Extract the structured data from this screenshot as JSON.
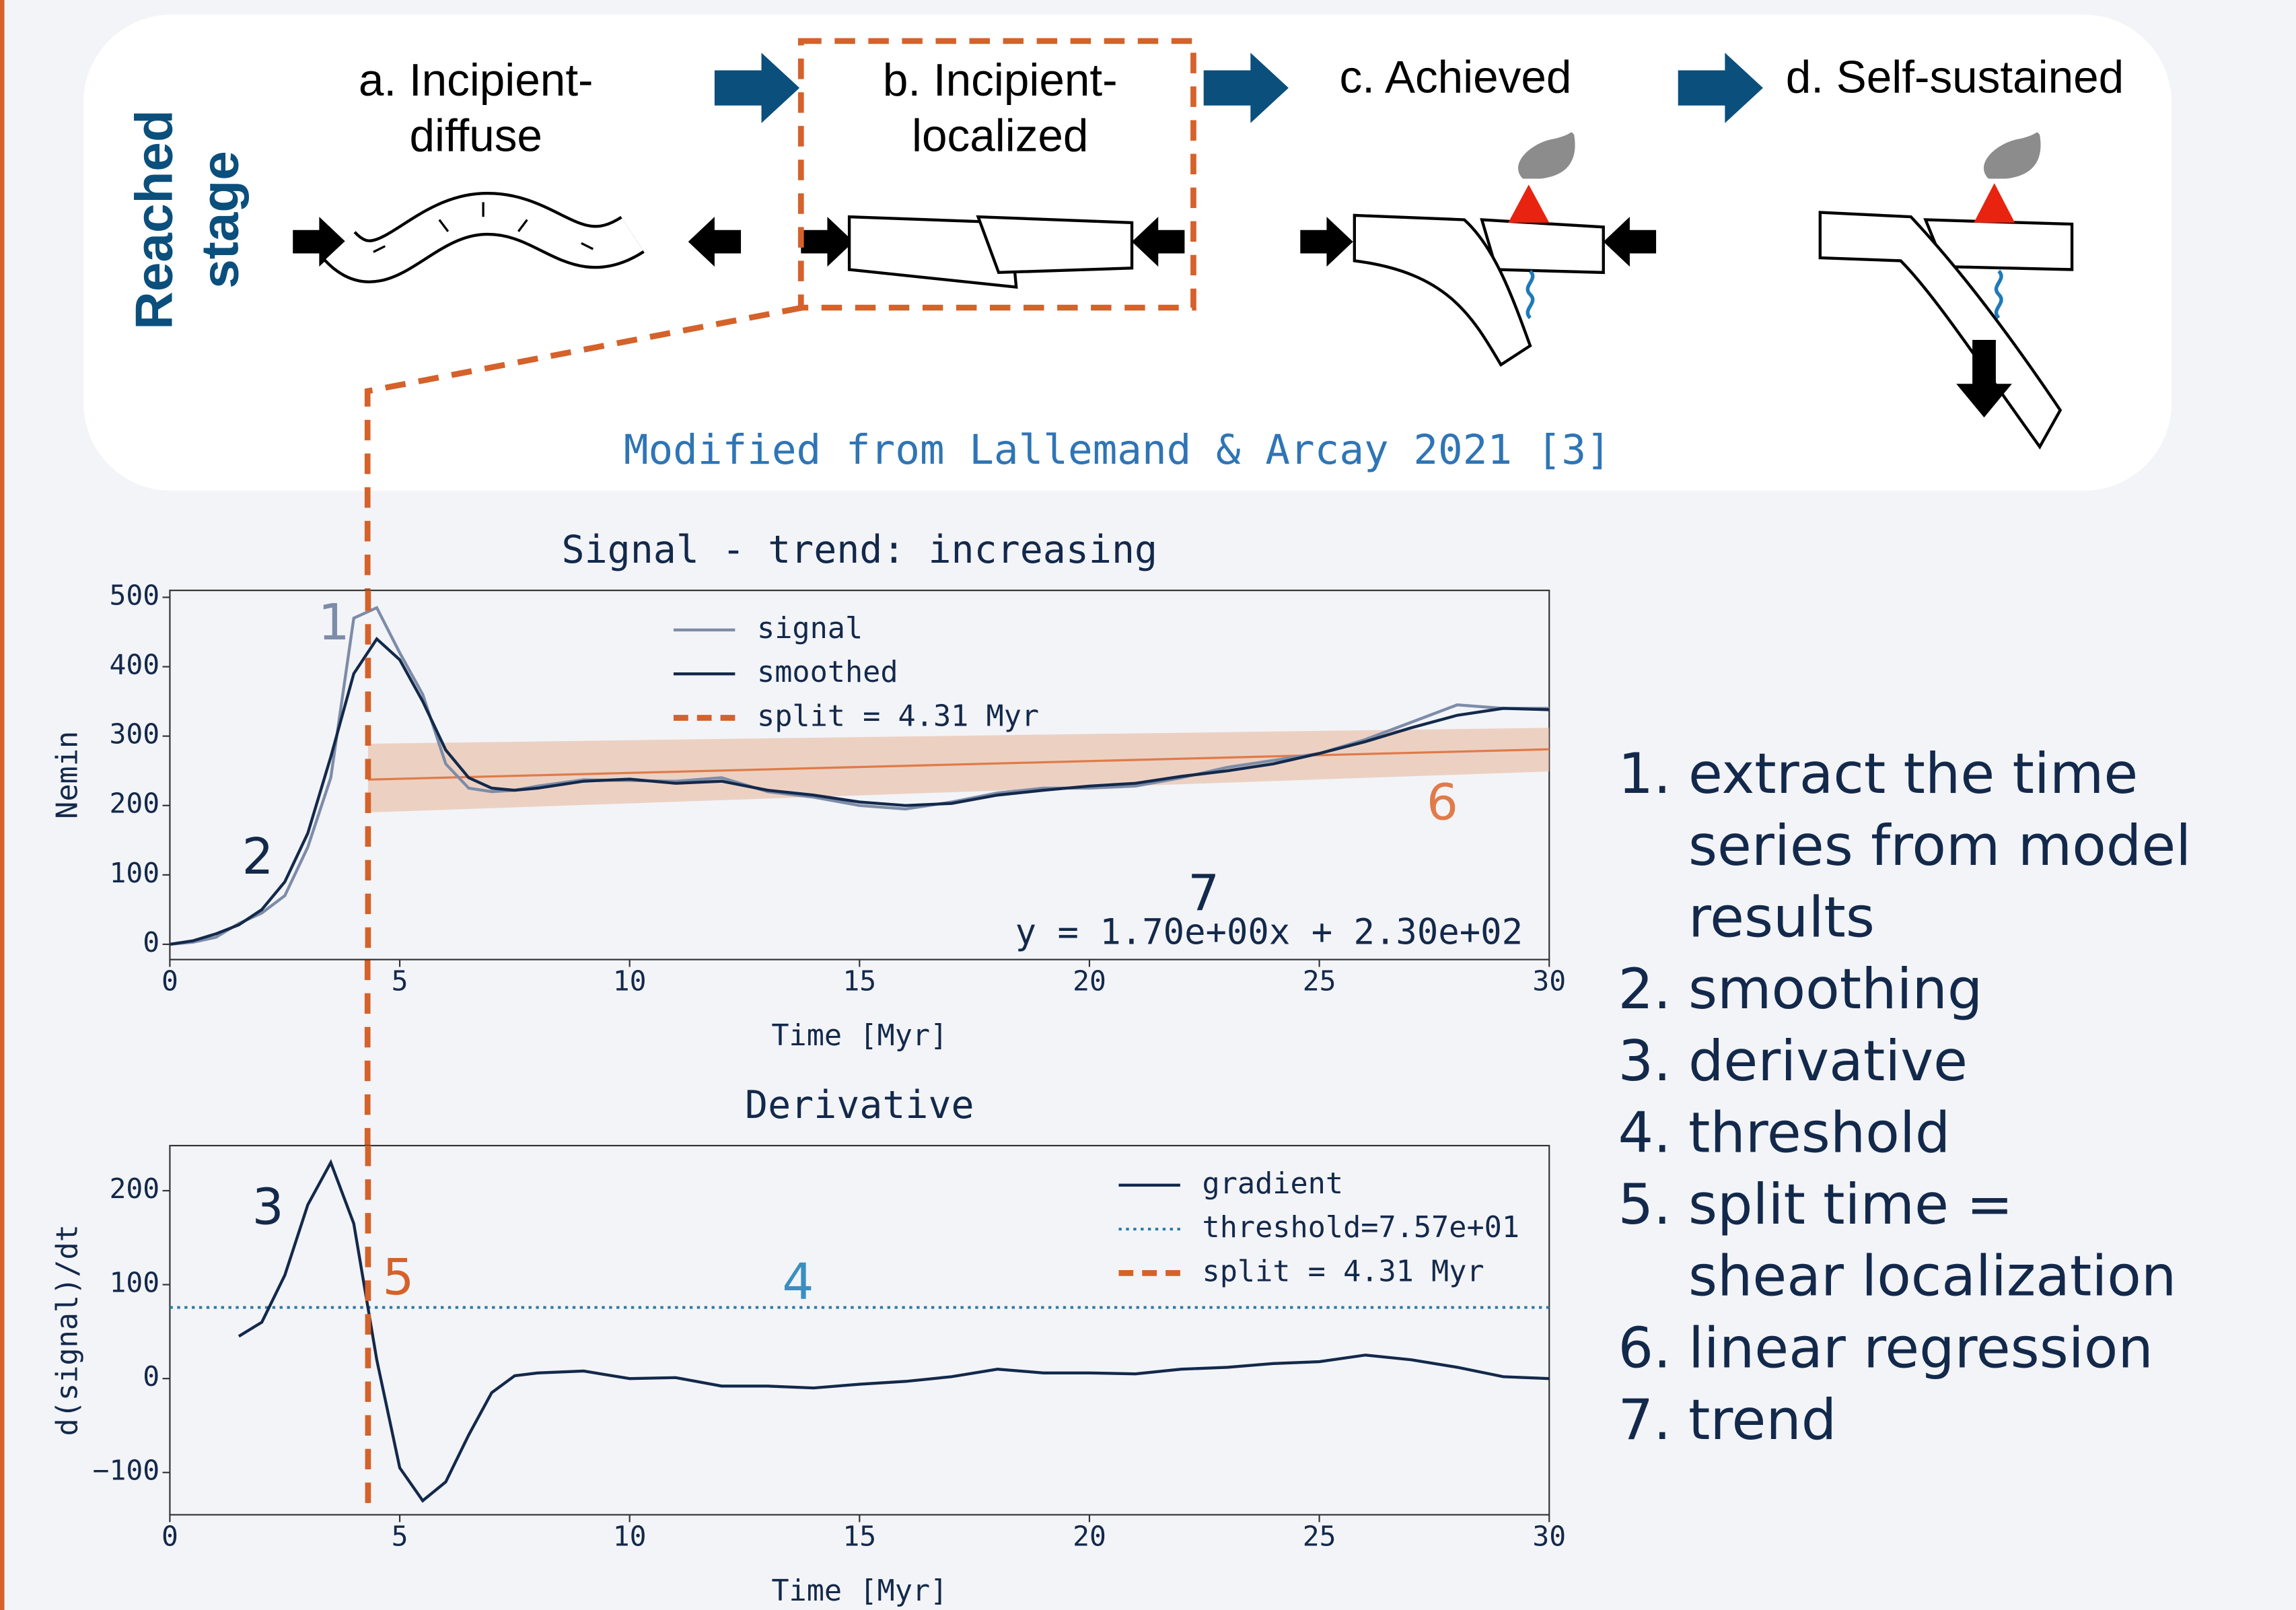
{
  "diagram": {
    "side_label": [
      "Reached",
      "stage"
    ],
    "stages": [
      {
        "label": [
          "a. Incipient-",
          "diffuse"
        ]
      },
      {
        "label": [
          "b. Incipient-",
          "localized"
        ]
      },
      {
        "label": [
          "c. Achieved"
        ]
      },
      {
        "label": [
          "d. Self-sustained"
        ]
      }
    ],
    "credit": "Modified from Lallemand & Arcay 2021 [3]"
  },
  "steps": [
    {
      "number": "1.",
      "text": [
        "extract the time",
        "series from model",
        "results"
      ]
    },
    {
      "number": "2.",
      "text": [
        "smoothing"
      ]
    },
    {
      "number": "3.",
      "text": [
        "derivative"
      ]
    },
    {
      "number": "4.",
      "text": [
        "threshold"
      ]
    },
    {
      "number": "5.",
      "text": [
        "split time =",
        "shear localization"
      ]
    },
    {
      "number": "6.",
      "text": [
        "linear regression"
      ]
    },
    {
      "number": "7.",
      "text": [
        "trend"
      ]
    }
  ],
  "chart_data": [
    {
      "type": "line",
      "title": "Signal - trend: increasing",
      "x_label": "Time [Myr]",
      "y_label": "Nemin",
      "x": [
        0,
        0.5,
        1,
        1.5,
        2,
        2.5,
        3,
        3.5,
        4,
        4.5,
        5,
        5.5,
        6,
        6.5,
        7,
        7.5,
        8,
        9,
        10,
        11,
        12,
        13,
        14,
        15,
        16,
        17,
        18,
        19,
        20,
        21,
        22,
        23,
        24,
        25,
        26,
        27,
        28,
        29,
        30
      ],
      "series": [
        {
          "name": "signal",
          "color": "#7d8ca8",
          "values": [
            0,
            3,
            10,
            30,
            45,
            70,
            140,
            240,
            470,
            485,
            420,
            360,
            260,
            225,
            220,
            222,
            228,
            237,
            236,
            235,
            240,
            220,
            212,
            200,
            195,
            205,
            218,
            225,
            225,
            228,
            240,
            255,
            265,
            275,
            295,
            320,
            345,
            340,
            340
          ]
        },
        {
          "name": "smoothed",
          "color": "#13294b",
          "values": [
            0,
            5,
            15,
            28,
            50,
            90,
            160,
            270,
            390,
            440,
            410,
            350,
            280,
            240,
            225,
            222,
            225,
            235,
            238,
            232,
            235,
            222,
            215,
            205,
            200,
            203,
            215,
            222,
            228,
            232,
            242,
            250,
            260,
            275,
            292,
            312,
            330,
            340,
            338
          ]
        }
      ],
      "regression": {
        "color": "#e07b4a",
        "band_color": "#e8b9a0",
        "x": [
          4.31,
          30
        ],
        "values": [
          237.3,
          281
        ],
        "lower": [
          190,
          249
        ],
        "upper": [
          289,
          312
        ]
      },
      "split": {
        "x": 4.31,
        "label": "split = 4.31 Myr",
        "color": "#d4622a"
      },
      "equation": "y = 1.70e+00x + 2.30e+02",
      "annotations": [
        {
          "text": "1",
          "color": "#7d8ca8"
        },
        {
          "text": "2",
          "color": "#13294b"
        },
        {
          "text": "6",
          "color": "#e07b4a"
        },
        {
          "text": "7",
          "color": "#13294b"
        }
      ],
      "legend": "upper center",
      "xlim": [
        0,
        30
      ],
      "ylim": [
        -22,
        510
      ],
      "xticks": [
        0,
        5,
        10,
        15,
        20,
        25,
        30
      ],
      "yticks": [
        0,
        100,
        200,
        300,
        400,
        500
      ]
    },
    {
      "type": "line",
      "title": "Derivative",
      "x_label": "Time [Myr]",
      "y_label": "d(signal)/dt",
      "x": [
        1.5,
        2,
        2.5,
        3,
        3.5,
        4,
        4.5,
        5,
        5.5,
        6,
        6.5,
        7,
        7.5,
        8,
        9,
        10,
        11,
        12,
        13,
        14,
        15,
        16,
        17,
        18,
        19,
        20,
        21,
        22,
        23,
        24,
        25,
        26,
        27,
        28,
        29,
        30
      ],
      "series": [
        {
          "name": "gradient",
          "color": "#13294b",
          "values": [
            45,
            60,
            110,
            185,
            230,
            165,
            20,
            -95,
            -130,
            -110,
            -60,
            -15,
            3,
            6,
            8,
            0,
            1,
            -8,
            -8,
            -10,
            -6,
            -3,
            2,
            10,
            6,
            6,
            5,
            10,
            12,
            16,
            18,
            25,
            20,
            12,
            2,
            0
          ]
        }
      ],
      "threshold": {
        "value": 75.7,
        "label": "threshold=7.57e+01",
        "color": "#2a7aa0"
      },
      "split": {
        "x": 4.31,
        "label": "split = 4.31 Myr",
        "color": "#d4622a"
      },
      "annotations": [
        {
          "text": "3",
          "color": "#13294b"
        },
        {
          "text": "5",
          "color": "#d4622a"
        },
        {
          "text": "4",
          "color": "#3a8fc0"
        }
      ],
      "legend": "upper right",
      "xlim": [
        0,
        30
      ],
      "ylim": [
        -145,
        248
      ],
      "xticks": [
        0,
        5,
        10,
        15,
        20,
        25,
        30
      ],
      "yticks": [
        {
          "value": -100,
          "label": "−100"
        },
        0,
        100,
        200
      ]
    }
  ]
}
